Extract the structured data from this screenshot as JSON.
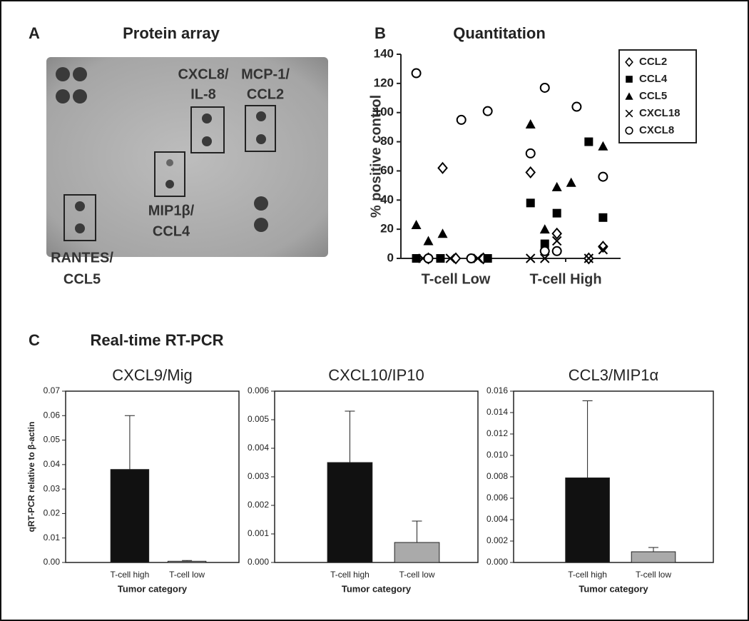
{
  "panel_a": {
    "letter": "A",
    "title": "Protein array",
    "labels": [
      [
        "CXCL8/",
        "IL-8"
      ],
      [
        "MCP-1/",
        "CCL2"
      ],
      [
        "MIP1β/",
        "CCL4"
      ],
      [
        "RANTES/",
        "CCL5"
      ]
    ]
  },
  "panel_c": {
    "letter": "C",
    "title": "Real-time RT-PCR"
  },
  "chart_data": [
    {
      "type": "scatter",
      "letter": "B",
      "title": "Quantitation",
      "y_label": "% positive control",
      "xlim": [
        0,
        2
      ],
      "xticks": [
        {
          "value": 0.5,
          "label": "T-cell Low"
        },
        {
          "value": 1.5,
          "label": "T-cell High"
        }
      ],
      "ylim": [
        0,
        140
      ],
      "yticks": [
        0,
        20,
        40,
        60,
        80,
        100,
        120,
        140
      ],
      "legend": "top-right",
      "series": [
        {
          "name": "CCL2",
          "color": "#000000",
          "marker": "diamond",
          "x": [
            0.38,
            0.25,
            0.5,
            0.75,
            1.18,
            1.42,
            1.84,
            1.71
          ],
          "values": [
            62,
            0,
            0,
            0,
            59,
            17,
            8,
            0
          ]
        },
        {
          "name": "CCL4",
          "color": "#000000",
          "marker": "square",
          "x": [
            0.14,
            0.36,
            0.79,
            1.18,
            1.42,
            1.71,
            1.84,
            1.31
          ],
          "values": [
            0,
            0,
            0,
            38,
            31,
            80,
            28,
            10
          ]
        },
        {
          "name": "CCL5",
          "color": "#000000",
          "marker": "triangle",
          "x": [
            0.14,
            0.25,
            0.38,
            1.18,
            1.31,
            1.42,
            1.55,
            1.84
          ],
          "values": [
            23,
            12,
            17,
            92,
            20,
            49,
            52,
            77
          ]
        },
        {
          "name": "CXCL18",
          "color": "#000000",
          "marker": "x",
          "x": [
            0.2,
            0.45,
            0.7,
            1.18,
            1.31,
            1.42,
            1.71,
            1.84
          ],
          "values": [
            0,
            0,
            0,
            0,
            0,
            12,
            0,
            6
          ]
        },
        {
          "name": "CXCL8",
          "color": "#000000",
          "marker": "circle",
          "x": [
            0.14,
            0.55,
            0.79,
            0.25,
            0.64,
            1.18,
            1.31,
            1.6,
            1.84,
            1.31,
            1.42
          ],
          "values": [
            127,
            95,
            101,
            0,
            0,
            72,
            117,
            104,
            56,
            5,
            5
          ]
        }
      ]
    },
    {
      "type": "bar",
      "title": "CXCL9/Mig",
      "y_label": "qRT-PCR relative to β-actin",
      "x_label": "Tumor category",
      "categories": [
        "T-cell high",
        "T-cell low"
      ],
      "values": [
        0.038,
        0.0005
      ],
      "errors": [
        0.022,
        0.0003
      ],
      "colors": [
        "#111111",
        "#aaaaaa"
      ],
      "ylim": [
        0,
        0.07
      ],
      "yticks": [
        {
          "value": 0,
          "label": "0.00"
        },
        0.01,
        0.02,
        0.03,
        0.04,
        0.05,
        0.06,
        0.07
      ]
    },
    {
      "type": "bar",
      "title": "CXCL10/IP10",
      "x_label": "Tumor category",
      "categories": [
        "T-cell high",
        "T-cell low"
      ],
      "values": [
        0.0035,
        0.0007
      ],
      "errors": [
        0.0018,
        0.00075
      ],
      "colors": [
        "#111111",
        "#aaaaaa"
      ],
      "ylim": [
        0,
        0.006
      ],
      "yticks": [
        {
          "value": 0,
          "label": "0.000"
        },
        0.001,
        0.002,
        0.003,
        0.004,
        0.005,
        0.006
      ]
    },
    {
      "type": "bar",
      "title": "CCL3/MIP1α",
      "x_label": "Tumor category",
      "categories": [
        "T-cell high",
        "T-cell low"
      ],
      "values": [
        0.0079,
        0.001
      ],
      "errors": [
        0.0072,
        0.0004
      ],
      "colors": [
        "#111111",
        "#aaaaaa"
      ],
      "ylim": [
        0,
        0.016
      ],
      "yticks": [
        {
          "value": 0,
          "label": "0.000"
        },
        0.002,
        0.004,
        0.006,
        0.008,
        {
          "value": 0.01,
          "label": "0.010"
        },
        0.012,
        0.014,
        0.016
      ]
    }
  ]
}
